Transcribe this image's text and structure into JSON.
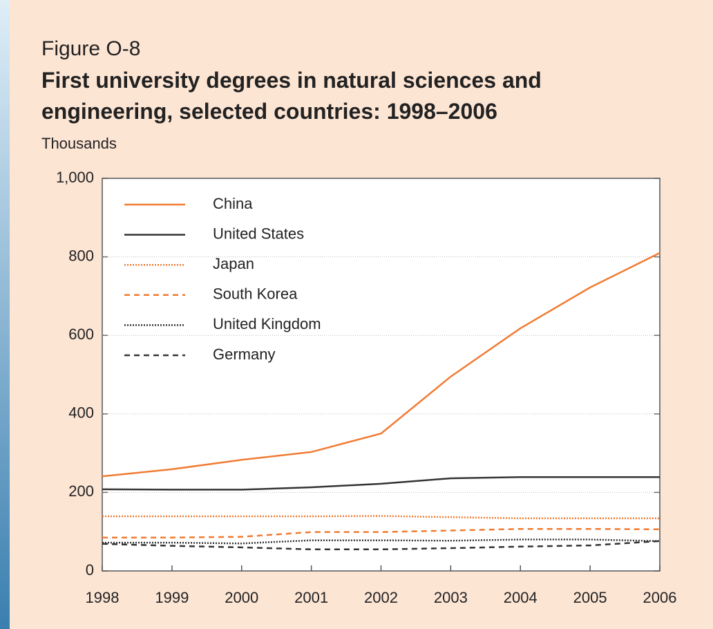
{
  "chart_data": {
    "type": "line",
    "label": "Figure O-8",
    "title": "First university degrees in natural sciences and engineering, selected countries: 1998–2006",
    "y_axis_label": "Thousands",
    "x": [
      1998,
      1999,
      2000,
      2001,
      2002,
      2003,
      2004,
      2005,
      2006
    ],
    "xlim": [
      1998,
      2006
    ],
    "xticks": [
      1998,
      1999,
      2000,
      2001,
      2002,
      2003,
      2004,
      2005,
      2006
    ],
    "ylim": [
      0,
      1000
    ],
    "yticks": [
      0,
      200,
      400,
      600,
      {
        "value": 800,
        "label": "800"
      },
      {
        "value": 1000,
        "label": "1,000"
      }
    ],
    "grid": true,
    "legend": "upper left",
    "series": [
      {
        "name": "China",
        "color": "#f07b32",
        "style": "solid",
        "values": [
          241,
          259,
          283,
          303,
          350,
          495,
          618,
          722,
          810
        ]
      },
      {
        "name": "United States",
        "color": "#333333",
        "style": "solid",
        "values": [
          208,
          207,
          207,
          213,
          222,
          236,
          239,
          239,
          239
        ]
      },
      {
        "name": "Japan",
        "color": "#f07b32",
        "style": "dotted",
        "values": [
          139,
          139,
          139,
          139,
          140,
          137,
          134,
          134,
          134
        ]
      },
      {
        "name": "South Korea",
        "color": "#f07b32",
        "style": "dashed",
        "values": [
          85,
          85,
          87,
          99,
          99,
          103,
          107,
          107,
          106
        ]
      },
      {
        "name": "United Kingdom",
        "color": "#333333",
        "style": "dotted",
        "values": [
          72,
          72,
          70,
          78,
          78,
          77,
          80,
          80,
          76
        ]
      },
      {
        "name": "Germany",
        "color": "#333333",
        "style": "dashed",
        "values": [
          69,
          64,
          60,
          55,
          55,
          58,
          62,
          65,
          76
        ]
      }
    ]
  }
}
